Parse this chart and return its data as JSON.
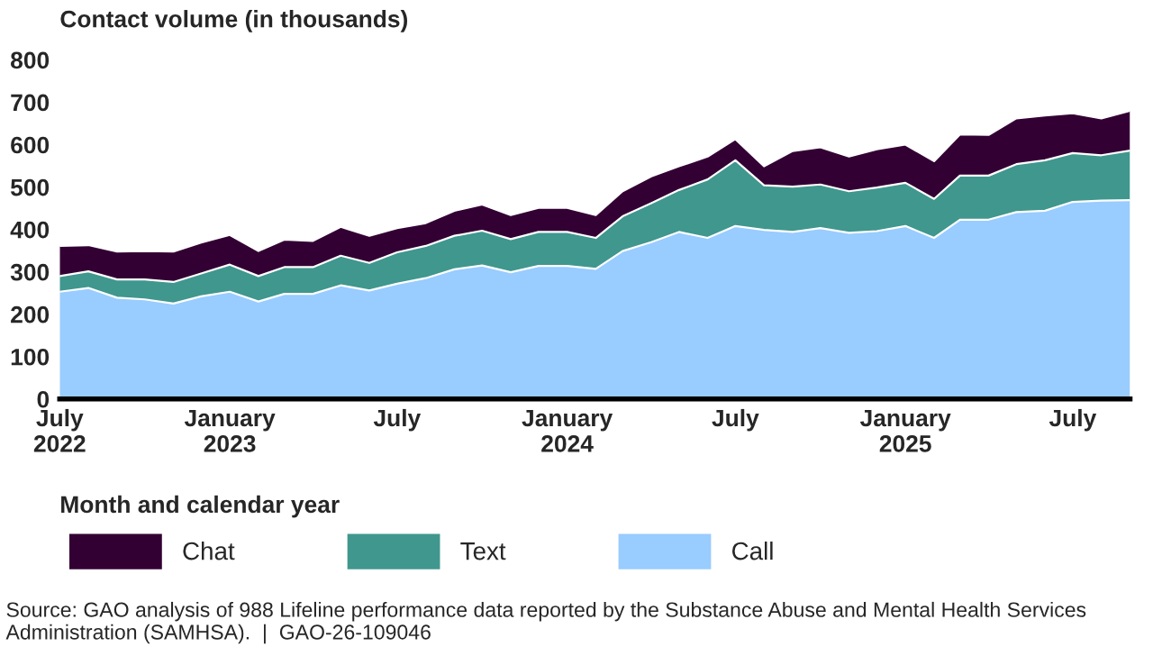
{
  "chart_data": {
    "type": "area",
    "stacked": true,
    "ylabel": "Contact volume (in thousands)",
    "xlabel": "Month and calendar year",
    "x": [
      "2022-07",
      "2022-08",
      "2022-09",
      "2022-10",
      "2022-11",
      "2022-12",
      "2023-01",
      "2023-02",
      "2023-03",
      "2023-04",
      "2023-05",
      "2023-06",
      "2023-07",
      "2023-08",
      "2023-09",
      "2023-10",
      "2023-11",
      "2023-12",
      "2024-01",
      "2024-02",
      "2024-03",
      "2024-04",
      "2024-05",
      "2024-06",
      "2024-07",
      "2024-08",
      "2024-09",
      "2024-10",
      "2024-11",
      "2024-12",
      "2025-01",
      "2025-02",
      "2025-03",
      "2025-04",
      "2025-05",
      "2025-06",
      "2025-07",
      "2025-08",
      "2025-09"
    ],
    "series": [
      {
        "name": "Call",
        "color": "#99ccff",
        "values": [
          253,
          262,
          239,
          235,
          225,
          242,
          253,
          230,
          248,
          248,
          268,
          256,
          272,
          285,
          306,
          315,
          299,
          314,
          314,
          307,
          349,
          370,
          394,
          380,
          408,
          399,
          394,
          403,
          392,
          396,
          408,
          380,
          423,
          423,
          441,
          444,
          465,
          468,
          469
        ]
      },
      {
        "name": "Text",
        "color": "#3f978e",
        "values": [
          37,
          39,
          43,
          47,
          51,
          54,
          64,
          60,
          63,
          63,
          70,
          65,
          74,
          76,
          79,
          82,
          78,
          80,
          80,
          73,
          82,
          92,
          99,
          138,
          155,
          105,
          107,
          103,
          98,
          103,
          102,
          92,
          104,
          104,
          113,
          119,
          115,
          107,
          117
        ]
      },
      {
        "name": "Chat",
        "color": "#330033",
        "values": [
          71,
          62,
          66,
          67,
          72,
          73,
          70,
          59,
          65,
          62,
          68,
          64,
          57,
          54,
          59,
          62,
          57,
          57,
          57,
          54,
          59,
          63,
          56,
          54,
          50,
          45,
          84,
          88,
          82,
          90,
          90,
          89,
          97,
          96,
          108,
          106,
          94,
          87,
          94
        ]
      }
    ],
    "xlim": [
      "2022-07",
      "2025-09"
    ],
    "xticks": [
      {
        "value": "2022-07",
        "label": "July\n2022"
      },
      {
        "value": "2023-01",
        "label": "January\n2023"
      },
      {
        "value": "2023-07",
        "label": "July"
      },
      {
        "value": "2024-01",
        "label": "January\n2024"
      },
      {
        "value": "2024-07",
        "label": "July"
      },
      {
        "value": "2025-01",
        "label": "January\n2025"
      },
      {
        "value": "2025-07",
        "label": "July"
      }
    ],
    "ylim": [
      0,
      800
    ],
    "yticks": [
      0,
      100,
      200,
      300,
      400,
      500,
      600,
      700,
      800
    ],
    "grid": false,
    "legend": "bottom",
    "annotations": [
      "Source: GAO analysis of 988 Lifeline performance data reported by the Substance Abuse and Mental Health Services Administration (SAMHSA).  |  GAO-26-109046"
    ]
  }
}
